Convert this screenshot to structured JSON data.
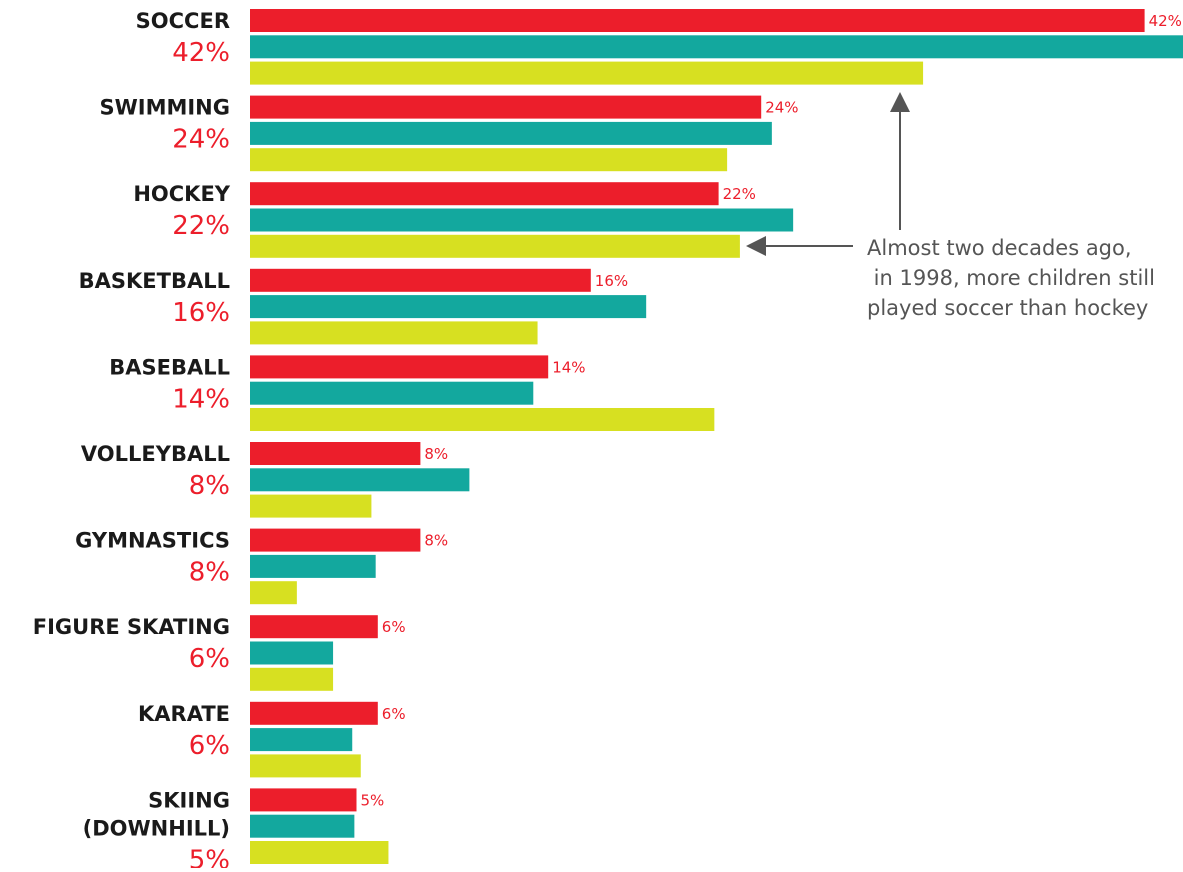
{
  "chart_data": {
    "type": "bar",
    "orientation": "horizontal",
    "grid": false,
    "categories": [
      [
        "SOCCER"
      ],
      [
        "SWIMMING"
      ],
      [
        "HOCKEY"
      ],
      [
        "BASKETBALL"
      ],
      [
        "BASEBALL"
      ],
      [
        "VOLLEYBALL"
      ],
      [
        "GYMNASTICS"
      ],
      [
        "FIGURE SKATING"
      ],
      [
        "KARATE"
      ],
      [
        "SKIING",
        "(DOWNHILL)"
      ]
    ],
    "category_percent_labels": [
      "42%",
      "24%",
      "22%",
      "16%",
      "14%",
      "8%",
      "8%",
      "6%",
      "6%",
      "5%"
    ],
    "series": [
      {
        "color": "#ec1e2b",
        "values": [
          42,
          24,
          22,
          16,
          14,
          8,
          8,
          6,
          6,
          5
        ],
        "value_labels": [
          "42%",
          "24%",
          "22%",
          "16%",
          "14%",
          "8%",
          "8%",
          "6%",
          "6%",
          "5%"
        ]
      },
      {
        "color": "#13a89e",
        "values": [
          44,
          24.5,
          25.5,
          18.6,
          13.3,
          10.3,
          5.9,
          3.9,
          4.8,
          4.9
        ]
      },
      {
        "color": "#d7e021",
        "values": [
          31.6,
          22.4,
          23,
          13.5,
          21.8,
          5.7,
          2.2,
          3.9,
          5.2,
          6.5
        ]
      }
    ],
    "xlim": [
      0,
      45
    ],
    "annotation": {
      "lines": [
        "Almost two decades ago,",
        " in 1998, more children still",
        "played soccer than hockey"
      ],
      "color": "#555555"
    }
  }
}
